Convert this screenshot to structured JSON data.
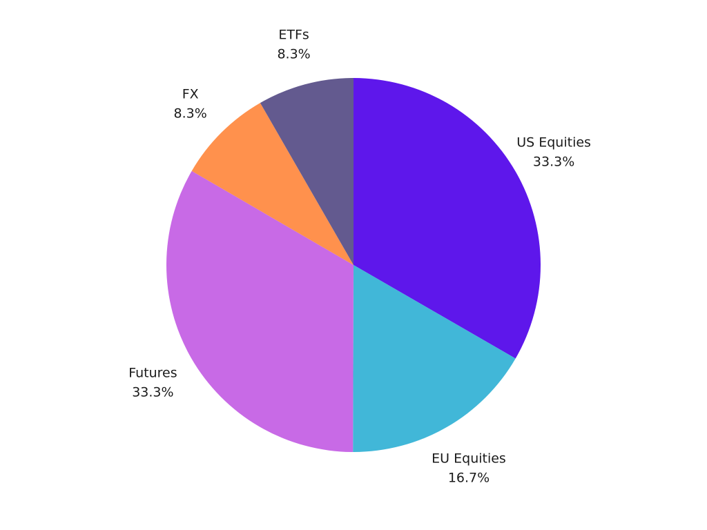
{
  "chart_data": {
    "type": "pie",
    "title": "",
    "legend": "none",
    "start_angle_deg": 0,
    "direction": "clockwise",
    "slices": [
      {
        "label": "US Equities",
        "percent_label": "33.3%",
        "value": 33.3,
        "color": "#5e17eb"
      },
      {
        "label": "EU Equities",
        "percent_label": "16.7%",
        "value": 16.7,
        "color": "#41b7d8"
      },
      {
        "label": "Futures",
        "percent_label": "33.3%",
        "value": 33.3,
        "color": "#c86ae6"
      },
      {
        "label": "FX",
        "percent_label": "8.3%",
        "value": 8.3,
        "color": "#ff914d"
      },
      {
        "label": "ETFs",
        "percent_label": "8.3%",
        "value": 8.3,
        "color": "#635a8f"
      }
    ]
  }
}
